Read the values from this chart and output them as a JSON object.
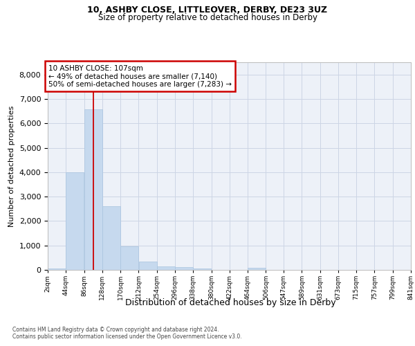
{
  "title1": "10, ASHBY CLOSE, LITTLEOVER, DERBY, DE23 3UZ",
  "title2": "Size of property relative to detached houses in Derby",
  "xlabel": "Distribution of detached houses by size in Derby",
  "ylabel": "Number of detached properties",
  "bar_color": "#c6d9ee",
  "bar_edge_color": "#a8c4df",
  "grid_color": "#ccd5e5",
  "background_color": "#edf1f8",
  "vline_color": "#cc0000",
  "vline_x": 107,
  "annotation_text": "10 ASHBY CLOSE: 107sqm\n← 49% of detached houses are smaller (7,140)\n50% of semi-detached houses are larger (7,283) →",
  "annotation_box_color": "white",
  "annotation_box_edge": "#cc0000",
  "bin_edges": [
    2,
    44,
    86,
    128,
    170,
    212,
    254,
    296,
    338,
    380,
    422,
    464,
    506,
    547,
    589,
    631,
    673,
    715,
    757,
    799,
    841
  ],
  "bin_labels": [
    "2sqm",
    "44sqm",
    "86sqm",
    "128sqm",
    "170sqm",
    "212sqm",
    "254sqm",
    "296sqm",
    "338sqm",
    "380sqm",
    "422sqm",
    "464sqm",
    "506sqm",
    "547sqm",
    "589sqm",
    "631sqm",
    "673sqm",
    "715sqm",
    "757sqm",
    "799sqm",
    "841sqm"
  ],
  "bar_heights": [
    70,
    4000,
    6560,
    2620,
    960,
    330,
    130,
    100,
    60,
    0,
    0,
    80,
    0,
    0,
    0,
    0,
    0,
    0,
    0,
    0
  ],
  "ylim": [
    0,
    8500
  ],
  "yticks": [
    0,
    1000,
    2000,
    3000,
    4000,
    5000,
    6000,
    7000,
    8000
  ],
  "footer1": "Contains HM Land Registry data © Crown copyright and database right 2024.",
  "footer2": "Contains public sector information licensed under the Open Government Licence v3.0."
}
